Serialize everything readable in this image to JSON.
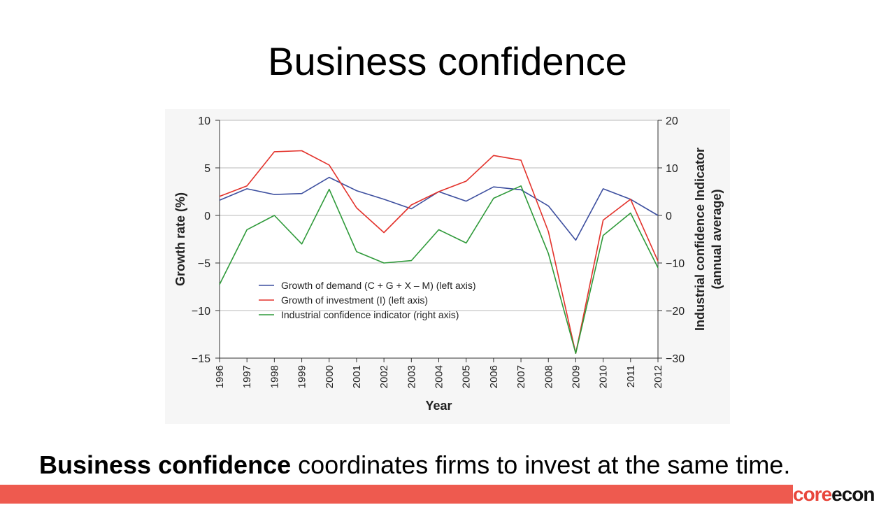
{
  "slide": {
    "title": "Business confidence",
    "caption_bold": "Business confidence",
    "caption_rest": " coordinates firms to invest at the same time.",
    "brand_part1": "core",
    "brand_part2": "econ",
    "brand_colors": {
      "core": "#e8463b",
      "econ": "#111111",
      "bar": "#ee5a4f"
    }
  },
  "chart_data": {
    "type": "line",
    "xlabel": "Year",
    "ylabel_left": "Growth rate (%)",
    "ylabel_right_line1": "Industrial confidence Indicator",
    "ylabel_right_line2": "(annual  average)",
    "x": [
      "1996",
      "1997",
      "1998",
      "1999",
      "2000",
      "2001",
      "2002",
      "2003",
      "2004",
      "2005",
      "2006",
      "2007",
      "2008",
      "2009",
      "2010",
      "2011",
      "2012"
    ],
    "ylim_left": [
      -15,
      10
    ],
    "ylim_right": [
      -30,
      20
    ],
    "yticks_left": [
      10,
      5,
      0,
      -5,
      -10,
      -15
    ],
    "yticks_left_labels": [
      "10",
      "5",
      "0",
      "−5",
      "−10",
      "−15"
    ],
    "yticks_right": [
      20,
      10,
      0,
      -10,
      -20,
      -30
    ],
    "yticks_right_labels": [
      "20",
      "10",
      "0",
      "−10",
      "−20",
      "−30"
    ],
    "grid": true,
    "legend_position": "lower-left inside plot",
    "series": [
      {
        "name": "Growth of demand (C + G + X – M) (left axis)",
        "axis": "left",
        "color": "#3d4f9f",
        "values": [
          1.6,
          2.8,
          2.2,
          2.3,
          4.0,
          2.6,
          1.7,
          0.7,
          2.5,
          1.5,
          3.0,
          2.7,
          1.0,
          -2.6,
          2.8,
          1.7,
          0.0
        ]
      },
      {
        "name": "Growth of investment (I) (left axis)",
        "axis": "left",
        "color": "#e3322b",
        "values": [
          2.0,
          3.1,
          6.7,
          6.8,
          5.3,
          0.8,
          -1.8,
          1.1,
          2.5,
          3.6,
          6.3,
          5.8,
          -1.7,
          -14.5,
          -0.5,
          1.7,
          -4.8
        ]
      },
      {
        "name": "Industrial confidence indicator (right axis)",
        "axis": "right",
        "color": "#2f9a3a",
        "values": [
          -14.5,
          -3.0,
          0.0,
          -6.0,
          5.5,
          -7.6,
          -10.0,
          -9.5,
          -3.0,
          -5.8,
          3.6,
          6.2,
          -8.0,
          -29.0,
          -4.2,
          0.5,
          -11.0
        ]
      }
    ]
  }
}
